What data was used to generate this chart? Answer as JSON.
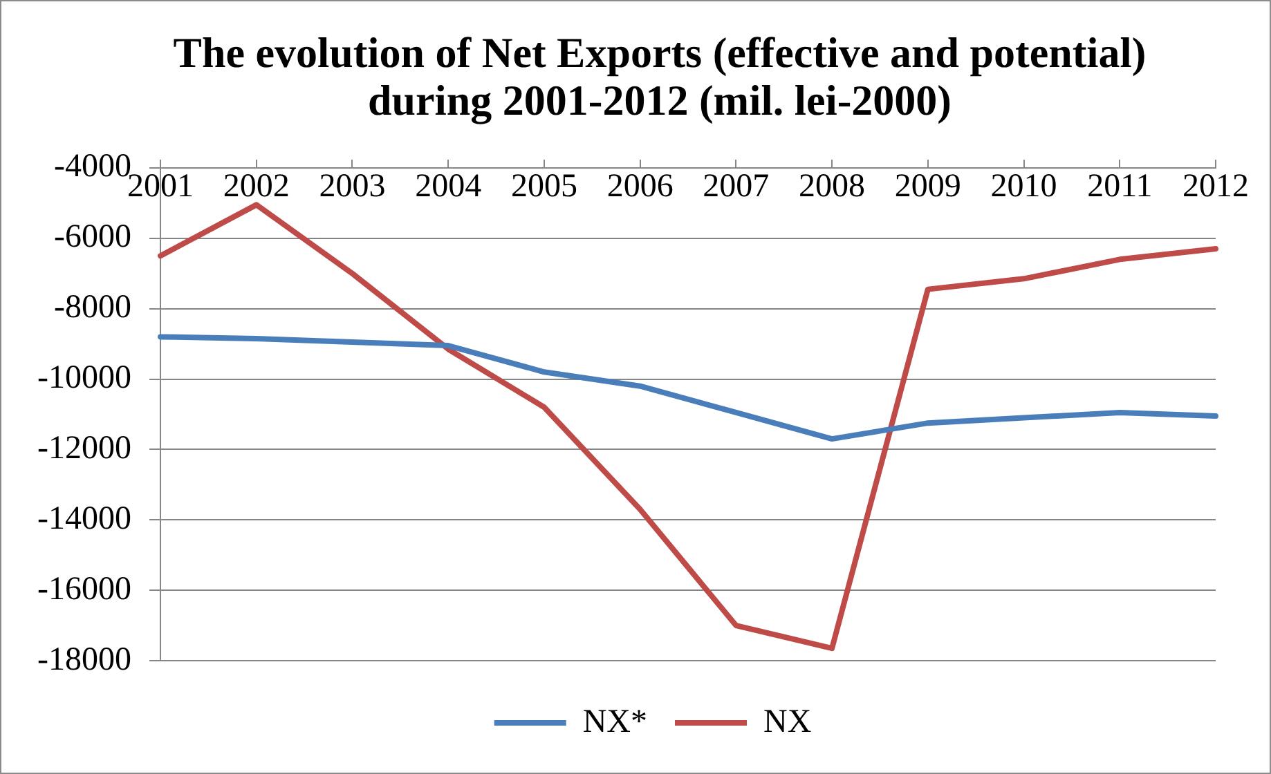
{
  "chart_data": {
    "type": "line",
    "title": "The evolution of Net Exports (effective and potential) during 2001-2012 (mil. lei-2000)",
    "categories": [
      "2001",
      "2002",
      "2003",
      "2004",
      "2005",
      "2006",
      "2007",
      "2008",
      "2009",
      "2010",
      "2011",
      "2012"
    ],
    "series": [
      {
        "name": "NX*",
        "color": "#4a7ebb",
        "values": [
          -8800,
          -8850,
          -8950,
          -9050,
          -9800,
          -10200,
          -10950,
          -11700,
          -11250,
          -11100,
          -10950,
          -11050
        ]
      },
      {
        "name": "NX",
        "color": "#be4b48",
        "values": [
          -6500,
          -5050,
          -7000,
          -9150,
          -10800,
          -13700,
          -17000,
          -17650,
          -7450,
          -7150,
          -6600,
          -6300
        ]
      }
    ],
    "ylim": [
      -18000,
      -4000
    ],
    "yticks": [
      -18000,
      -16000,
      -14000,
      -12000,
      -10000,
      -8000,
      -6000,
      -4000
    ],
    "grid": "y",
    "legend": "bottom",
    "marker": "none"
  }
}
